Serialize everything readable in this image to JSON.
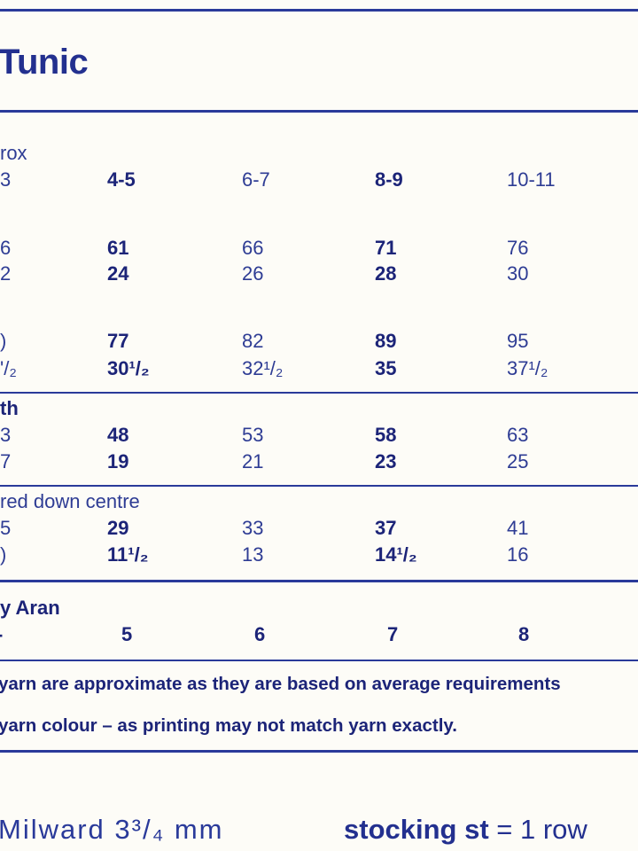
{
  "title": "Tunic",
  "rows": {
    "size": {
      "label1": "rox",
      "label2": "3",
      "values": [
        "4-5",
        "6-7",
        "8-9",
        "10-11"
      ]
    },
    "chest": {
      "cm_first": "6",
      "in_first": "2",
      "cm": [
        "61",
        "66",
        "71",
        "76"
      ],
      "in": [
        "24",
        "26",
        "28",
        "30"
      ]
    },
    "actual": {
      "cm_first": ")",
      "in_first": "'/₂",
      "cm": [
        "77",
        "82",
        "89",
        "95"
      ],
      "in": [
        "30¹/₂",
        "32¹/₂",
        "35",
        "37¹/₂"
      ]
    },
    "length": {
      "label": "th",
      "cm_first": "3",
      "in_first": "7",
      "cm": [
        "48",
        "53",
        "58",
        "63"
      ],
      "in": [
        "19",
        "21",
        "23",
        "25"
      ]
    },
    "sleeve": {
      "label": "red down centre",
      "cm_first": "5",
      "in_first": ")",
      "cm": [
        "29",
        "33",
        "37",
        "41"
      ],
      "in": [
        "11¹/₂",
        "13",
        "14¹/₂",
        "16"
      ]
    },
    "yarn": {
      "label": "y Aran",
      "first": "-",
      "values": [
        "5",
        "6",
        "7",
        "8"
      ]
    }
  },
  "notes": [
    "yarn are approximate as they are based on average requirements",
    "yarn colour – as printing may not match yarn exactly."
  ],
  "footer": {
    "needles": "Milward 3³/₄ mm",
    "stocking_label": "stocking st",
    "stocking_value": " = 1 row"
  },
  "colors": {
    "ink": "#1f2a7a",
    "rule": "#2a3a9a",
    "paper": "#fdfcf7"
  }
}
